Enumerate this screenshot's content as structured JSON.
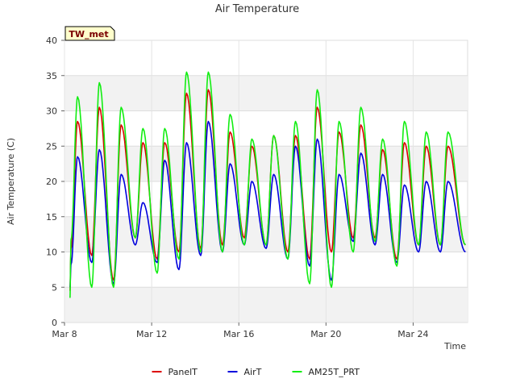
{
  "chart_data": {
    "type": "line",
    "title": "Air Temperature",
    "xlabel": "Time",
    "ylabel": "Air Temperature (C)",
    "station_tag": "TW_met",
    "x_unit": "days since Mar 8",
    "xlim": [
      0,
      18.5
    ],
    "ylim": [
      0,
      40
    ],
    "x_ticks": [
      {
        "value": 0,
        "label": "Mar 8"
      },
      {
        "value": 4,
        "label": "Mar 12"
      },
      {
        "value": 8,
        "label": "Mar 16"
      },
      {
        "value": 12,
        "label": "Mar 20"
      },
      {
        "value": 16,
        "label": "Mar 24"
      }
    ],
    "y_ticks": [
      0,
      5,
      10,
      15,
      20,
      25,
      30,
      35,
      40
    ],
    "grid": true,
    "legend_position": "bottom",
    "daily_extremes": {
      "x_min": [
        0.25,
        1.25,
        2.25,
        3.25,
        4.25,
        5.25,
        6.25,
        7.25,
        8.25,
        9.25,
        10.25,
        11.25,
        12.25,
        13.25,
        14.25,
        15.25,
        16.25,
        17.25
      ],
      "x_max": [
        0.6,
        1.6,
        2.6,
        3.6,
        4.6,
        5.6,
        6.6,
        7.6,
        8.6,
        9.6,
        10.6,
        11.6,
        12.6,
        13.6,
        14.6,
        15.6,
        16.6,
        17.6
      ]
    },
    "series": [
      {
        "name": "PanelT",
        "color": "#dd0000",
        "x_start": 0.3,
        "x_end": 18.4,
        "daily_min": [
          4.5,
          9.5,
          6.0,
          12.0,
          9.0,
          10.0,
          10.5,
          11.0,
          12.0,
          11.0,
          10.0,
          9.0,
          10.0,
          12.0,
          12.0,
          9.0,
          11.0,
          11.0
        ],
        "daily_max": [
          28.5,
          30.5,
          28.0,
          25.5,
          25.5,
          32.5,
          33.0,
          27.0,
          25.0,
          26.5,
          26.5,
          30.5,
          27.0,
          28.0,
          24.5,
          25.5,
          25.0,
          25.0
        ]
      },
      {
        "name": "AirT",
        "color": "#0000dd",
        "x_start": 0.3,
        "x_end": 18.4,
        "daily_min": [
          5.0,
          8.5,
          5.5,
          11.0,
          8.5,
          7.5,
          9.5,
          10.0,
          11.0,
          10.5,
          9.0,
          8.0,
          6.0,
          11.5,
          11.0,
          8.5,
          10.0,
          10.0
        ],
        "daily_max": [
          23.5,
          24.5,
          21.0,
          17.0,
          23.0,
          25.5,
          28.5,
          22.5,
          20.0,
          21.0,
          25.0,
          26.0,
          21.0,
          24.0,
          21.0,
          19.5,
          20.0,
          20.0
        ]
      },
      {
        "name": "AM25T_PRT",
        "color": "#11ee11",
        "x_start": 0.3,
        "x_end": 18.4,
        "daily_min": [
          3.5,
          5.0,
          5.0,
          12.0,
          7.0,
          9.0,
          10.0,
          10.0,
          11.0,
          11.0,
          9.0,
          5.5,
          5.0,
          10.0,
          11.5,
          8.0,
          11.0,
          11.0
        ],
        "daily_max": [
          32.0,
          34.0,
          30.5,
          27.5,
          27.5,
          35.5,
          35.5,
          29.5,
          26.0,
          26.5,
          28.5,
          33.0,
          28.5,
          30.5,
          26.0,
          28.5,
          27.0,
          27.0
        ]
      }
    ]
  }
}
